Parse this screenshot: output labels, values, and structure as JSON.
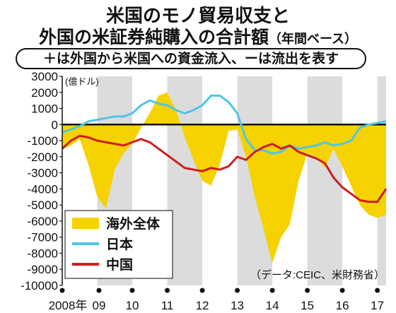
{
  "header": {
    "title_line1": "米国のモノ貿易収支と",
    "title_line2": "外国の米証券純購入の合計額",
    "title_paren": "（年間ベース）",
    "note": "＋は外国から米国への資金流入、ーは流出を表す"
  },
  "chart_data": {
    "type": "area",
    "unit": "(億ドル)",
    "source": "（データ:CEIC、米財務省）",
    "ylim": [
      -10000,
      3000
    ],
    "y_ticks": [
      "3000",
      "2000",
      "1000",
      "0",
      "-1000",
      "-2000",
      "-3000",
      "-4000",
      "-5000",
      "-6000",
      "-7000",
      "-8000",
      "-9000",
      "-10000"
    ],
    "x_ticks": [
      "2008年",
      "09",
      "10",
      "11",
      "12",
      "13",
      "14",
      "15",
      "16",
      "17"
    ],
    "legend": [
      {
        "label": "海外全体",
        "color": "#f5d200"
      },
      {
        "label": "日本",
        "color": "#4dc6e6"
      },
      {
        "label": "中国",
        "color": "#cc1e1e"
      }
    ],
    "x": [
      2008.0,
      2008.25,
      2008.5,
      2008.75,
      2009.0,
      2009.25,
      2009.5,
      2009.75,
      2010.0,
      2010.25,
      2010.5,
      2010.75,
      2011.0,
      2011.25,
      2011.5,
      2011.75,
      2012.0,
      2012.25,
      2012.5,
      2012.75,
      2013.0,
      2013.25,
      2013.5,
      2013.75,
      2014.0,
      2014.25,
      2014.5,
      2014.75,
      2015.0,
      2015.25,
      2015.5,
      2015.75,
      2016.0,
      2016.25,
      2016.5,
      2016.75,
      2017.0,
      2017.25
    ],
    "series": [
      {
        "name": "海外全体",
        "color": "#f5d200",
        "values": [
          -1500,
          -1300,
          -900,
          -2500,
          -4500,
          -5200,
          -2800,
          -1800,
          -1200,
          -200,
          700,
          1800,
          2000,
          900,
          -800,
          -2200,
          -3500,
          -3800,
          -2500,
          -400,
          -300,
          -2000,
          -4500,
          -6500,
          -8600,
          -7000,
          -6200,
          -3500,
          -1800,
          -2000,
          -2700,
          -1500,
          -2600,
          -3800,
          -5000,
          -5600,
          -5800,
          -5600
        ]
      },
      {
        "name": "日本",
        "color": "#4dc6e6",
        "values": [
          -500,
          -300,
          -100,
          200,
          300,
          400,
          500,
          500,
          700,
          1200,
          1500,
          1300,
          1200,
          900,
          700,
          900,
          1200,
          1800,
          1800,
          1400,
          700,
          -900,
          -1600,
          -1600,
          -1800,
          -1700,
          -1300,
          -1500,
          -1400,
          -1300,
          -1100,
          -1300,
          -1200,
          -1000,
          -200,
          0,
          100,
          200
        ]
      },
      {
        "name": "中国",
        "color": "#cc1e1e",
        "values": [
          -1500,
          -1000,
          -700,
          -800,
          -1000,
          -1100,
          -1200,
          -1300,
          -1100,
          -900,
          -1100,
          -1500,
          -1900,
          -2300,
          -2700,
          -2800,
          -2900,
          -2700,
          -2800,
          -2600,
          -2000,
          -2200,
          -1700,
          -1400,
          -1200,
          -1500,
          -1300,
          -1700,
          -1900,
          -2100,
          -2400,
          -3300,
          -3900,
          -4300,
          -4700,
          -4800,
          -4800,
          -4000
        ]
      }
    ]
  }
}
